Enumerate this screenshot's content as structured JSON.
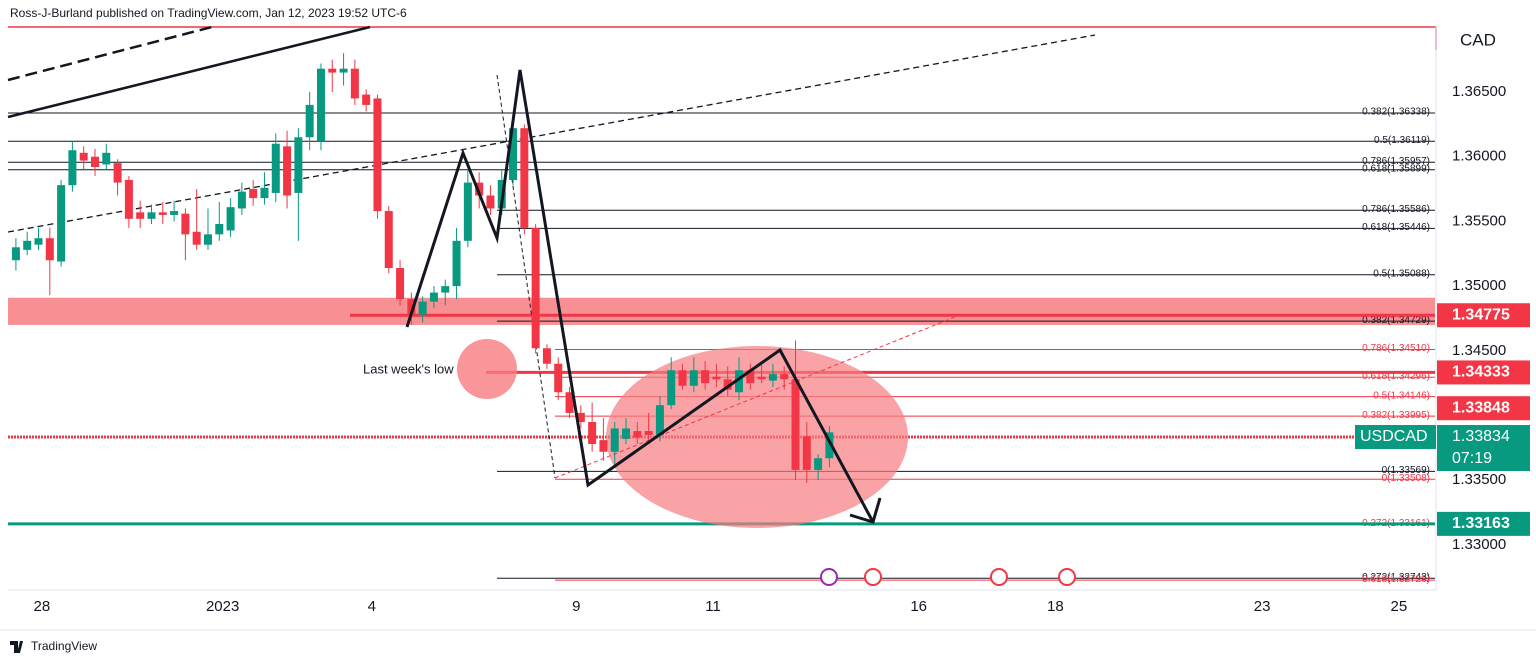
{
  "chart_data": {
    "type": "candlestick",
    "title": "Ross-J-Burland published on TradingView.com, Jan 12, 2023 19:52 UTC-6",
    "currency": "CAD",
    "symbol": "USDCAD",
    "countdown": "07:19",
    "annotation": "Last week's low",
    "footer": "TradingView",
    "up_color": "#089981",
    "down_color": "#f23645",
    "x": [
      0,
      1,
      2,
      3,
      4,
      5,
      6,
      7,
      8,
      9,
      10,
      11,
      12,
      13,
      14,
      15,
      16,
      17,
      18,
      19,
      20,
      21,
      22,
      23,
      24,
      25,
      26,
      27,
      28,
      29,
      30,
      31,
      32,
      33,
      34,
      35,
      36,
      37,
      38,
      39,
      40,
      41,
      42,
      43,
      44,
      45,
      46,
      47,
      48,
      49,
      50,
      51,
      52,
      53,
      54,
      55,
      56,
      57,
      58,
      59,
      60,
      61,
      62,
      63,
      64,
      65,
      66,
      67,
      68,
      69,
      70,
      71,
      72
    ],
    "open": [
      1.352,
      1.3528,
      1.3532,
      1.3537,
      1.3519,
      1.3578,
      1.3603,
      1.36,
      1.3594,
      1.3595,
      1.3582,
      1.3557,
      1.3552,
      1.3557,
      1.3555,
      1.3556,
      1.3542,
      1.3532,
      1.354,
      1.3543,
      1.356,
      1.3575,
      1.3568,
      1.3572,
      1.3608,
      1.3572,
      1.3615,
      1.3612,
      1.3668,
      1.3665,
      1.3668,
      1.3648,
      1.3645,
      1.3558,
      1.3514,
      1.349,
      1.3478,
      1.3488,
      1.3495,
      1.35,
      1.3535,
      1.358,
      1.357,
      1.356,
      1.3582,
      1.3622,
      1.3545,
      1.3452,
      1.344,
      1.3418,
      1.3402,
      1.3395,
      1.3381,
      1.3372,
      1.3382,
      1.3388,
      1.3388,
      1.3385,
      1.3408,
      1.3435,
      1.3423,
      1.3435,
      1.343,
      1.3428,
      1.3418,
      1.3435,
      1.343,
      1.3427,
      1.3432,
      1.3428,
      1.3384,
      1.3358,
      1.3367
    ],
    "high": [
      1.3537,
      1.3542,
      1.3545,
      1.3545,
      1.3582,
      1.3612,
      1.3608,
      1.3606,
      1.361,
      1.3598,
      1.3585,
      1.3566,
      1.3563,
      1.3565,
      1.3566,
      1.356,
      1.3575,
      1.356,
      1.3565,
      1.3568,
      1.358,
      1.3582,
      1.3588,
      1.3618,
      1.362,
      1.3622,
      1.365,
      1.3672,
      1.3675,
      1.368,
      1.3675,
      1.3652,
      1.3648,
      1.3562,
      1.352,
      1.3495,
      1.3492,
      1.35,
      1.3505,
      1.3545,
      1.359,
      1.3588,
      1.3578,
      1.359,
      1.3628,
      1.3625,
      1.3548,
      1.3455,
      1.3445,
      1.3422,
      1.3408,
      1.341,
      1.3398,
      1.3395,
      1.3398,
      1.3395,
      1.3402,
      1.3415,
      1.3445,
      1.344,
      1.3445,
      1.3442,
      1.344,
      1.3438,
      1.3445,
      1.344,
      1.3442,
      1.344,
      1.3438,
      1.3458,
      1.3395,
      1.337,
      1.3392
    ],
    "low": [
      1.3512,
      1.3524,
      1.3528,
      1.3493,
      1.3515,
      1.3573,
      1.359,
      1.3585,
      1.359,
      1.357,
      1.3545,
      1.3545,
      1.3548,
      1.3548,
      1.355,
      1.352,
      1.3528,
      1.3528,
      1.3535,
      1.3538,
      1.3555,
      1.3562,
      1.3563,
      1.3565,
      1.356,
      1.3535,
      1.3605,
      1.3605,
      1.365,
      1.3655,
      1.364,
      1.3635,
      1.3552,
      1.351,
      1.3485,
      1.347,
      1.3472,
      1.3483,
      1.3485,
      1.349,
      1.353,
      1.356,
      1.3555,
      1.3555,
      1.3578,
      1.354,
      1.3448,
      1.3436,
      1.3412,
      1.3398,
      1.339,
      1.3372,
      1.3365,
      1.3362,
      1.3378,
      1.3378,
      1.338,
      1.338,
      1.3405,
      1.342,
      1.3418,
      1.342,
      1.3422,
      1.3415,
      1.3412,
      1.342,
      1.3425,
      1.3422,
      1.342,
      1.335,
      1.3348,
      1.335,
      1.336
    ],
    "close": [
      1.353,
      1.3535,
      1.3537,
      1.352,
      1.3578,
      1.3605,
      1.3597,
      1.3592,
      1.3603,
      1.358,
      1.3552,
      1.3552,
      1.3557,
      1.3555,
      1.3558,
      1.354,
      1.3532,
      1.354,
      1.3548,
      1.3561,
      1.3573,
      1.3568,
      1.3576,
      1.361,
      1.357,
      1.3615,
      1.364,
      1.3668,
      1.3665,
      1.3668,
      1.3645,
      1.364,
      1.3558,
      1.3514,
      1.349,
      1.3478,
      1.3488,
      1.3495,
      1.35,
      1.3535,
      1.358,
      1.357,
      1.356,
      1.3582,
      1.3622,
      1.3545,
      1.3452,
      1.344,
      1.3418,
      1.3402,
      1.3395,
      1.3378,
      1.3372,
      1.339,
      1.339,
      1.3383,
      1.3385,
      1.3408,
      1.3435,
      1.3423,
      1.3435,
      1.3425,
      1.3428,
      1.342,
      1.3435,
      1.3425,
      1.3428,
      1.3432,
      1.3428,
      1.3358,
      1.3358,
      1.3367,
      1.3387
    ],
    "xlim": [
      -0.7,
      125.6
    ],
    "ylim": [
      1.32652,
      1.37002
    ],
    "xticks": [
      {
        "value": 2.3,
        "label": "28"
      },
      {
        "value": 18.3,
        "label": "2023"
      },
      {
        "value": 31.5,
        "label": "4"
      },
      {
        "value": 49.6,
        "label": "9"
      },
      {
        "value": 61.7,
        "label": "11"
      },
      {
        "value": 79.9,
        "label": "16"
      },
      {
        "value": 92.0,
        "label": "18"
      },
      {
        "value": 110.3,
        "label": "23"
      },
      {
        "value": 122.4,
        "label": "25"
      }
    ],
    "yticks": [
      {
        "value": 1.33,
        "label": "1.33000"
      },
      {
        "value": 1.335,
        "label": "1.33500"
      },
      {
        "value": 1.345,
        "label": "1.34500"
      },
      {
        "value": 1.35,
        "label": "1.35000"
      },
      {
        "value": 1.355,
        "label": "1.35500"
      },
      {
        "value": 1.36,
        "label": "1.36000"
      },
      {
        "value": 1.365,
        "label": "1.36500"
      }
    ],
    "zones": [
      {
        "top": 1.3491,
        "bottom": 1.347,
        "color": "#f77c80"
      }
    ],
    "fib_sets": [
      {
        "color": "#131722",
        "levels": [
          {
            "label": "0.382(1.36338)",
            "price": 1.36338
          },
          {
            "label": "0.5(1.36119)",
            "price": 1.36119
          },
          {
            "label": "0.786(1.35957)",
            "price": 1.35957
          },
          {
            "label": "0.618(1.35899)",
            "price": 1.35899
          }
        ]
      },
      {
        "color": "#131722",
        "levels": [
          {
            "label": "0.786(1.35586)",
            "price": 1.35586
          },
          {
            "label": "0.618(1.35446)",
            "price": 1.35446
          },
          {
            "label": "0.5(1.35088)",
            "price": 1.35088
          },
          {
            "label": "0.382(1.34729)",
            "price": 1.34729
          },
          {
            "label": "0(1.33569)",
            "price": 1.33569
          },
          {
            "label": "0.272(1.32743)",
            "price": 1.32743
          }
        ]
      },
      {
        "color": "#f23645",
        "levels": [
          {
            "label": "0.786(1.34510)",
            "price": 1.3451
          },
          {
            "label": "0.618(1.34296)",
            "price": 1.34296
          },
          {
            "label": "0.5(1.34146)",
            "price": 1.34146
          },
          {
            "label": "0.382(1.33995)",
            "price": 1.33995
          },
          {
            "label": "0(1.33508)",
            "price": 1.33508
          },
          {
            "label": "0.272(1.33161)",
            "price": 1.33161
          },
          {
            "label": "0.618(1.32728)",
            "price": 1.32728
          }
        ]
      }
    ],
    "price_lines": [
      {
        "price": 1.34775,
        "color": "#f23645",
        "line_color": "#f23645"
      },
      {
        "price": 1.34333,
        "color": "#f23645",
        "line_color": "#f23645"
      },
      {
        "price": 1.33848,
        "color": "#f23645"
      },
      {
        "price": 1.33834,
        "color": "#089981",
        "line_color": "#f23645"
      },
      {
        "price": 1.33163,
        "color": "#089981",
        "line_color": "#089981"
      }
    ]
  }
}
